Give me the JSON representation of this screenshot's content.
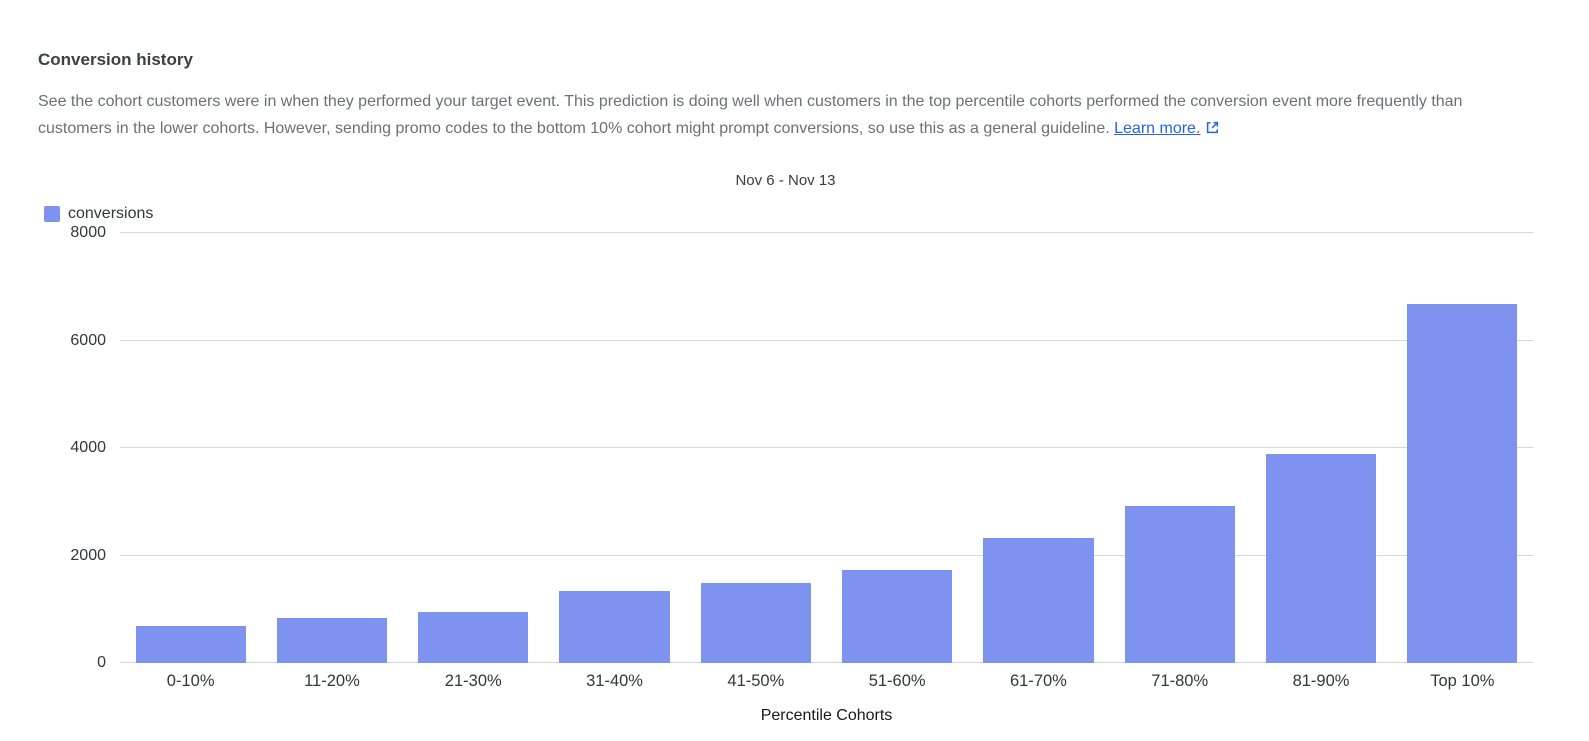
{
  "page": {
    "title": "Conversion history",
    "description": "See the cohort customers were in when they performed your target event. This prediction is doing well when customers in the top percentile cohorts performed the conversion event more frequently than customers in the lower cohorts. However, sending promo codes to the bottom 10% cohort might prompt conversions, so use this as a general guideline.",
    "learn_more_label": "Learn more."
  },
  "chart_data": {
    "type": "bar",
    "title": "Nov 6 - Nov 13",
    "series_name": "conversions",
    "categories": [
      "0-10%",
      "11-20%",
      "21-30%",
      "31-40%",
      "41-50%",
      "51-60%",
      "61-70%",
      "71-80%",
      "81-90%",
      "Top 10%"
    ],
    "values": [
      690,
      840,
      950,
      1340,
      1480,
      1730,
      2320,
      2920,
      3880,
      6680
    ],
    "xlabel": "Percentile Cohorts",
    "ylabel": "",
    "ylim": [
      0,
      8000
    ],
    "yticks": [
      0,
      2000,
      4000,
      6000,
      8000
    ],
    "grid": true,
    "legend_position": "top-left",
    "bar_color": "#7e93ef",
    "link_color": "#2563eb"
  }
}
